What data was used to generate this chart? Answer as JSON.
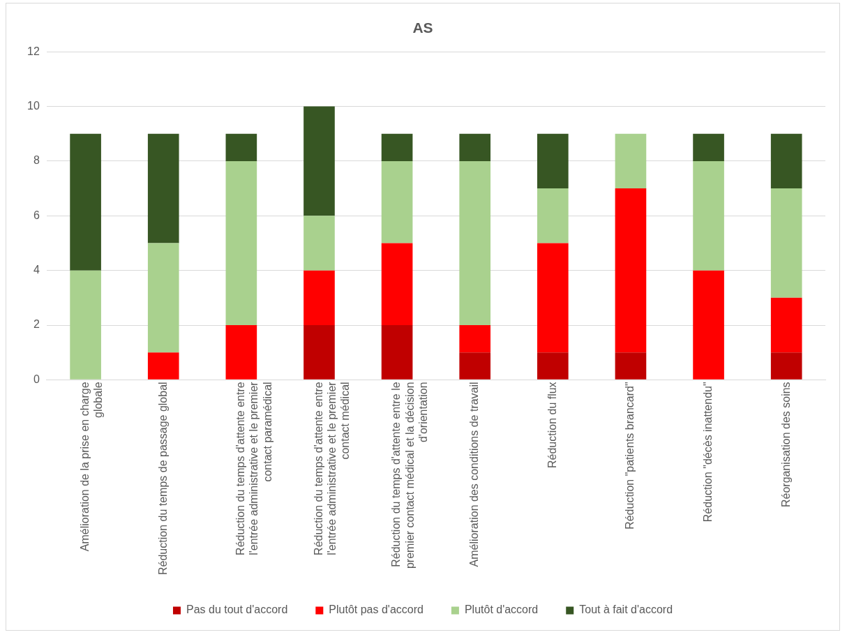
{
  "chart_data": {
    "type": "bar",
    "title": "AS",
    "stacked": true,
    "categories": [
      "Amélioration de la prise en charge globale",
      "Réduction du temps de passage global",
      "Réduction du temps d'attente entre l'entrée administrative et le premier contact paramédical",
      "Réduction du temps d'attente entre l'entrée administrative et le premier contact médical",
      "Réduction du temps d'attente entre le premier contact médical et la décision d'orientation",
      "Amélioration des conditions de travail",
      "Réduction du flux",
      "Réduction \"patients brancard\"",
      "Réduction \"décès inattendu\"",
      "Réorganisation des soins"
    ],
    "series": [
      {
        "name": "Pas du tout d'accord",
        "color": "#c00000",
        "values": [
          0,
          0,
          0,
          2,
          2,
          1,
          1,
          1,
          0,
          1
        ]
      },
      {
        "name": "Plutôt pas d'accord",
        "color": "#ff0000",
        "values": [
          0,
          1,
          2,
          2,
          3,
          1,
          4,
          6,
          4,
          2
        ]
      },
      {
        "name": "Plutôt d'accord",
        "color": "#a9d18e",
        "values": [
          4,
          4,
          6,
          2,
          3,
          6,
          2,
          2,
          4,
          4
        ]
      },
      {
        "name": "Tout à fait d'accord",
        "color": "#375623",
        "values": [
          5,
          4,
          1,
          4,
          1,
          1,
          2,
          0,
          1,
          2
        ]
      }
    ],
    "ylim": [
      0,
      12
    ],
    "yticks": [
      0,
      2,
      4,
      6,
      8,
      10,
      12
    ],
    "grid": "y",
    "legend": "bottom"
  }
}
